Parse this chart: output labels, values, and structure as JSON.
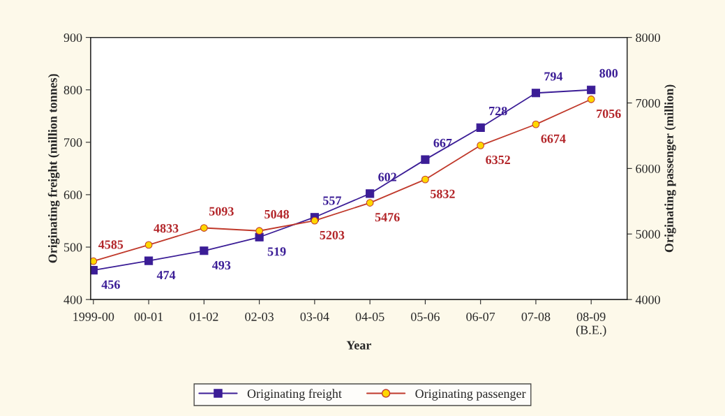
{
  "chart_data": {
    "type": "line",
    "xlabel": "Year",
    "ylabel": "Originating freight (million tonnes)",
    "y2label": "Originating passenger (million)",
    "categories": [
      "1999-00",
      "00-01",
      "01-02",
      "02-03",
      "03-04",
      "04-05",
      "05-06",
      "06-07",
      "07-08",
      "08-09\n(B.E.)"
    ],
    "series": [
      {
        "name": "Originating freight",
        "color": "#3b1d96",
        "marker": "square",
        "values": [
          456,
          474,
          493,
          519,
          557,
          602,
          667,
          728,
          794,
          800
        ]
      },
      {
        "name": "Originating passenger",
        "color": "#c0392b",
        "marker": "circle",
        "axis": "y2",
        "values": [
          4585,
          4833,
          5093,
          5048,
          5203,
          5476,
          5832,
          6352,
          6674,
          7056
        ]
      }
    ],
    "ylim": [
      400,
      900
    ],
    "yticks": [
      400,
      500,
      600,
      700,
      800,
      900
    ],
    "y2lim": [
      4000,
      8000
    ],
    "y2ticks": [
      4000,
      5000,
      6000,
      7000,
      8000
    ],
    "data_labels": true,
    "legend": "bottom",
    "grid": false
  }
}
